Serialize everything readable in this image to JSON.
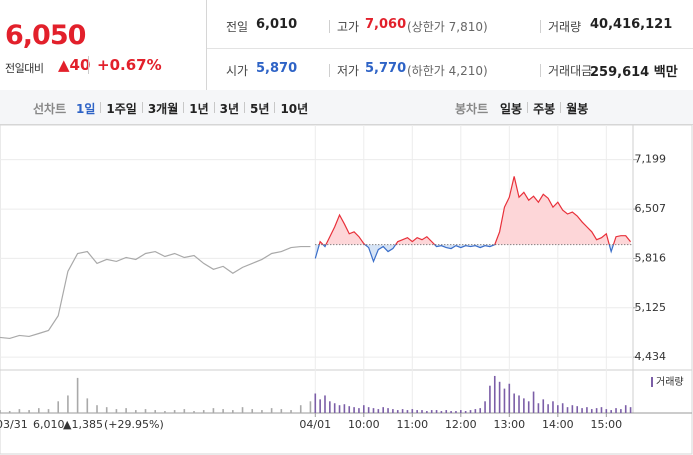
{
  "header": {
    "price": "6,050",
    "change_label": "전일대비",
    "change": "▲40",
    "rate": "+0.67%",
    "stats": [
      [
        {
          "label": "전일",
          "value": "6,010"
        },
        {
          "label": "고가",
          "value": "7,060",
          "note": "(상한가 7,810)"
        },
        {
          "label": "거래량",
          "value": "40,416,121"
        }
      ],
      [
        {
          "label": "시가",
          "value": "5,870"
        },
        {
          "label": "저가",
          "value": "5,770",
          "note": "(하한가 4,210)"
        },
        {
          "label": "거래대금",
          "value": "259,614 백만"
        }
      ]
    ]
  },
  "toolbar": {
    "line_label": "선차트",
    "periods": [
      "1일",
      "1주일",
      "3개월",
      "1년",
      "3년",
      "5년",
      "10년"
    ],
    "selected": 0,
    "candle_label": "봉차트",
    "candles": [
      "일봉",
      "주봉",
      "월봉"
    ]
  },
  "chart_data": {
    "type": "line",
    "xlim": [
      2.5,
      15.55
    ],
    "xticks": [
      {
        "value": 9,
        "label": "04/01"
      },
      {
        "value": 10,
        "label": "10:00"
      },
      {
        "value": 11,
        "label": "11:00"
      },
      {
        "value": 12,
        "label": "12:00"
      },
      {
        "value": 13,
        "label": "13:00"
      },
      {
        "value": 14,
        "label": "14:00"
      },
      {
        "value": 15,
        "label": "15:00"
      }
    ],
    "ylim": [
      4254,
      7614
    ],
    "yticks": [
      {
        "value": 4434,
        "label": "4,434"
      },
      {
        "value": 5125,
        "label": "5,125"
      },
      {
        "value": 5816,
        "label": "5,816"
      },
      {
        "value": 6507,
        "label": "6,507"
      },
      {
        "value": 7199,
        "label": "7,199"
      }
    ],
    "grid": true,
    "baseline": 6010,
    "series": [
      {
        "color": "#a9a9a9",
        "x": [
          2.5,
          2.7,
          2.9,
          3.1,
          3.3,
          3.5,
          3.7,
          3.9,
          4.1,
          4.3,
          4.5,
          4.7,
          4.9,
          5.1,
          5.3,
          5.5,
          5.7,
          5.9,
          6.1,
          6.3,
          6.5,
          6.7,
          6.9,
          7.1,
          7.3,
          7.5,
          7.7,
          7.9,
          8.1,
          8.3,
          8.5,
          8.7,
          8.9
        ],
        "values": [
          4710,
          4696,
          4738,
          4724,
          4765,
          4807,
          5014,
          5636,
          5885,
          5912,
          5746,
          5802,
          5774,
          5829,
          5802,
          5885,
          5912,
          5843,
          5885,
          5829,
          5857,
          5746,
          5664,
          5705,
          5608,
          5691,
          5746,
          5802,
          5885,
          5912,
          5968,
          5982,
          5982
        ]
      },
      {
        "color": "#e8303a",
        "color_below": "#3a6ec9",
        "fill": "#fdd6d8",
        "fill_below": "#d6e4f6",
        "x": [
          9.0,
          9.1,
          9.2,
          9.3,
          9.4,
          9.5,
          9.6,
          9.7,
          9.8,
          9.9,
          10.0,
          10.1,
          10.2,
          10.3,
          10.4,
          10.5,
          10.6,
          10.7,
          10.8,
          10.9,
          11.0,
          11.1,
          11.2,
          11.3,
          11.4,
          11.5,
          11.6,
          11.7,
          11.8,
          11.9,
          12.0,
          12.1,
          12.2,
          12.3,
          12.4,
          12.5,
          12.6,
          12.7,
          12.8,
          12.9,
          13.0,
          13.1,
          13.2,
          13.3,
          13.4,
          13.5,
          13.6,
          13.7,
          13.8,
          13.9,
          14.0,
          14.1,
          14.2,
          14.3,
          14.4,
          14.5,
          14.6,
          14.7,
          14.8,
          14.9,
          15.0,
          15.1,
          15.2,
          15.3,
          15.4,
          15.5
        ],
        "values": [
          5816,
          6051,
          5982,
          6120,
          6258,
          6424,
          6299,
          6161,
          6189,
          6120,
          6023,
          5968,
          5774,
          5940,
          5982,
          5912,
          5954,
          6051,
          6078,
          6106,
          6051,
          6106,
          6078,
          6120,
          6051,
          5982,
          5995,
          5968,
          5954,
          5995,
          5968,
          5995,
          5982,
          5995,
          5968,
          5995,
          5982,
          6009,
          6189,
          6534,
          6673,
          6964,
          6673,
          6742,
          6631,
          6687,
          6603,
          6714,
          6659,
          6534,
          6603,
          6493,
          6438,
          6465,
          6410,
          6327,
          6258,
          6189,
          6078,
          6106,
          6161,
          5912,
          6120,
          6134,
          6134,
          6050
        ]
      }
    ],
    "volume": {
      "name": "거래량",
      "color": "#7b5ea7",
      "ylim": [
        0,
        40
      ],
      "series": [
        {
          "color": "#a9a9a9",
          "values": [
            3,
            2,
            4,
            3,
            5,
            4,
            12,
            18,
            36,
            15,
            8,
            6,
            4,
            5,
            3,
            4,
            3,
            2,
            3,
            4,
            2,
            3,
            5,
            4,
            3,
            6,
            4,
            3,
            5,
            4,
            3,
            8,
            12
          ]
        },
        {
          "color": "#7b5ea7",
          "values": [
            20,
            14,
            18,
            12,
            10,
            8,
            9,
            7,
            6,
            5,
            8,
            6,
            5,
            4,
            6,
            5,
            4,
            3,
            4,
            3,
            4,
            3,
            3,
            2,
            3,
            3,
            2,
            3,
            2,
            2,
            3,
            2,
            3,
            4,
            5,
            12,
            28,
            38,
            32,
            25,
            30,
            20,
            18,
            15,
            12,
            22,
            10,
            14,
            9,
            12,
            8,
            10,
            6,
            8,
            7,
            5,
            6,
            4,
            5,
            6,
            4,
            3,
            5,
            4,
            8,
            6
          ]
        }
      ]
    },
    "footer": {
      "date": "03/31",
      "close": "6,010",
      "change": "▲1,385",
      "rate": "(+29.95%)"
    }
  }
}
